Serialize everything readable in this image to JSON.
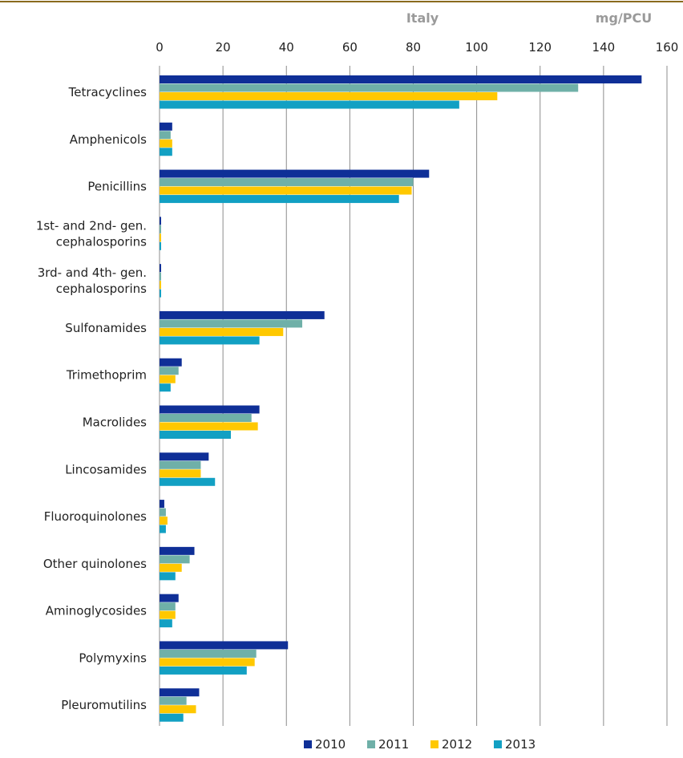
{
  "header": {
    "region": "Italy",
    "unit": "mg/PCU"
  },
  "colors": {
    "top_rule": "#8a6a1e",
    "grid": "#8c8c8c"
  },
  "chart_data": {
    "type": "bar",
    "orientation": "horizontal",
    "title": "",
    "xlabel": "",
    "ylabel": "",
    "xlim": [
      0,
      160
    ],
    "xticks": [
      0,
      20,
      40,
      60,
      80,
      100,
      120,
      140,
      160
    ],
    "axis_position": "top",
    "grid": true,
    "legend_position": "bottom",
    "categories": [
      "Tetracyclines",
      "Amphenicols",
      "Penicillins",
      "1st- and 2nd- gen.\ncephalosporins",
      "3rd- and 4th- gen.\ncephalosporins",
      "Sulfonamides",
      "Trimethoprim",
      "Macrolides",
      "Lincosamides",
      "Fluoroquinolones",
      "Other quinolones",
      "Aminoglycosides",
      "Polymyxins",
      "Pleuromutilins"
    ],
    "series": [
      {
        "name": "2010",
        "color": "#0f2f97",
        "values": [
          152,
          4,
          85,
          0.5,
          0.5,
          52,
          7,
          31.5,
          15.5,
          1.5,
          11,
          6,
          40.5,
          12.5
        ]
      },
      {
        "name": "2011",
        "color": "#6fb0a8",
        "values": [
          132,
          3.5,
          80,
          0.5,
          0.5,
          45,
          6,
          29,
          13,
          2,
          9.5,
          5,
          30.5,
          8.5
        ]
      },
      {
        "name": "2012",
        "color": "#ffc800",
        "values": [
          106.5,
          4,
          79.5,
          0.5,
          0.5,
          39,
          5,
          31,
          13,
          2.5,
          7,
          5,
          30,
          11.5
        ]
      },
      {
        "name": "2013",
        "color": "#12a0c3",
        "values": [
          94.5,
          4,
          75.5,
          0.5,
          0.5,
          31.5,
          3.5,
          22.5,
          17.5,
          2,
          5,
          4,
          27.5,
          7.5
        ]
      }
    ]
  }
}
